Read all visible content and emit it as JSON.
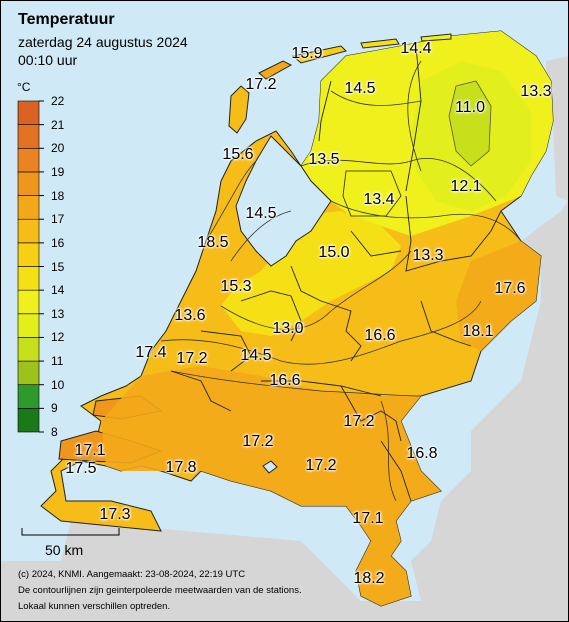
{
  "header": {
    "title": "Temperatuur",
    "date": "zaterdag 24 augustus 2024",
    "time": "00:10 uur"
  },
  "legend": {
    "unit": "°C",
    "min": 8,
    "max": 22,
    "ticks": [
      "22",
      "21",
      "20",
      "19",
      "18",
      "17",
      "16",
      "15",
      "14",
      "13",
      "12",
      "11",
      "10",
      "9",
      "8"
    ],
    "colors": {
      "8": "#1a7a1a",
      "9": "#2e9a2e",
      "10": "#9dc21c",
      "11": "#c8e01c",
      "12": "#e3ef1c",
      "13": "#f0f01c",
      "14": "#f5e015",
      "15": "#f7cf15",
      "16": "#f6bc18",
      "17": "#f3a81a",
      "18": "#ef961c",
      "19": "#ea8420",
      "20": "#e37322",
      "21": "#da6324",
      "22": "#cf5626"
    }
  },
  "scale_bar": {
    "label": "50 km"
  },
  "footer": {
    "line1": "(c) 2024, KNMI. Aangemaakt: 23-08-2024, 22:19 UTC",
    "line2": "De contourlijnen zijn geinterpoleerde meetwaarden van de stations.",
    "line3": "Lokaal kunnen verschillen optreden."
  },
  "stations": [
    {
      "id": "s1",
      "value": "15.9"
    },
    {
      "id": "s2",
      "value": "14.4"
    },
    {
      "id": "s3",
      "value": "17.2"
    },
    {
      "id": "s4",
      "value": "14.5"
    },
    {
      "id": "s5",
      "value": "11.0"
    },
    {
      "id": "s6",
      "value": "13.3"
    },
    {
      "id": "s7",
      "value": "15.6"
    },
    {
      "id": "s8",
      "value": "13.5"
    },
    {
      "id": "s9",
      "value": "12.1"
    },
    {
      "id": "s10",
      "value": "13.4"
    },
    {
      "id": "s11",
      "value": "14.5"
    },
    {
      "id": "s12",
      "value": "18.5"
    },
    {
      "id": "s13",
      "value": "15.0"
    },
    {
      "id": "s14",
      "value": "13.3"
    },
    {
      "id": "s15",
      "value": "15.3"
    },
    {
      "id": "s16",
      "value": "17.6"
    },
    {
      "id": "s17",
      "value": "13.6"
    },
    {
      "id": "s18",
      "value": "13.0"
    },
    {
      "id": "s19",
      "value": "16.6"
    },
    {
      "id": "s20",
      "value": "18.1"
    },
    {
      "id": "s21",
      "value": "17.4"
    },
    {
      "id": "s22",
      "value": "17.2"
    },
    {
      "id": "s23",
      "value": "14.5"
    },
    {
      "id": "s24",
      "value": "16.6"
    },
    {
      "id": "s25",
      "value": "17.2"
    },
    {
      "id": "s26",
      "value": "17.1"
    },
    {
      "id": "s27",
      "value": "17.2"
    },
    {
      "id": "s28",
      "value": "16.8"
    },
    {
      "id": "s29",
      "value": "17.5"
    },
    {
      "id": "s30",
      "value": "17.8"
    },
    {
      "id": "s31",
      "value": "17.2"
    },
    {
      "id": "s32",
      "value": "17.3"
    },
    {
      "id": "s33",
      "value": "17.1"
    },
    {
      "id": "s34",
      "value": "18.2"
    }
  ]
}
